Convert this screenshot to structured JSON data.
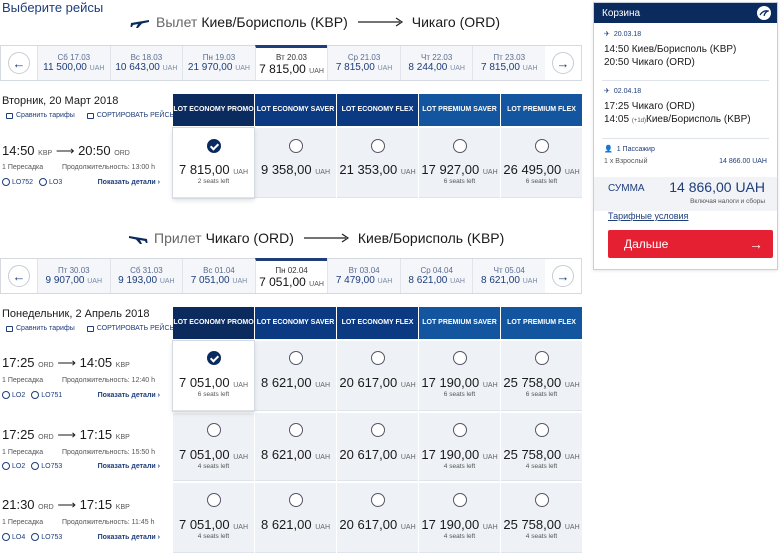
{
  "page_title": "Выберите рейсы",
  "outbound": {
    "kind": "Вылет",
    "from": "Киев/Борисполь (KBP)",
    "to": "Чикаго (ORD)",
    "dates": [
      {
        "day": "Сб 17.03",
        "price": "11 500,00",
        "cur": "UAH"
      },
      {
        "day": "Вс 18.03",
        "price": "10 643,00",
        "cur": "UAH"
      },
      {
        "day": "Пн 19.03",
        "price": "21 970,00",
        "cur": "UAH"
      },
      {
        "day": "Вт 20.03",
        "price": "7 815,00",
        "cur": "UAH"
      },
      {
        "day": "Ср 21.03",
        "price": "7 815,00",
        "cur": "UAH"
      },
      {
        "day": "Чт 22.03",
        "price": "8 244,00",
        "cur": "UAH"
      },
      {
        "day": "Пт 23.03",
        "price": "7 815,00",
        "cur": "UAH"
      }
    ],
    "date_label": "Вторник, 20 Март 2018",
    "fares": [
      "LOT ECONOMY PROMO",
      "LOT ECONOMY SAVER",
      "LOT ECONOMY FLEX",
      "LOT PREMIUM SAVER",
      "LOT PREMIUM FLEX"
    ],
    "flights": [
      {
        "dep": "14:50",
        "dep_code": "KBP",
        "arr": "20:50",
        "arr_code": "ORD",
        "stops": "1 Пересадка",
        "duration": "Продолжительность: 13:00 h",
        "flight_nums": [
          "LO752",
          "LO3"
        ],
        "prices": [
          {
            "value": "7 815,00",
            "seats": "2 seats left"
          },
          {
            "value": "9 358,00",
            "seats": ""
          },
          {
            "value": "21 353,00",
            "seats": ""
          },
          {
            "value": "17 927,00",
            "seats": "6 seats left"
          },
          {
            "value": "26 495,00",
            "seats": "6 seats left"
          }
        ]
      }
    ]
  },
  "inbound": {
    "kind": "Прилет",
    "from": "Чикаго (ORD)",
    "to": "Киев/Борисполь (KBP)",
    "dates": [
      {
        "day": "Пт 30.03",
        "price": "9 907,00",
        "cur": "UAH"
      },
      {
        "day": "Сб 31.03",
        "price": "9 193,00",
        "cur": "UAH"
      },
      {
        "day": "Вс 01.04",
        "price": "7 051,00",
        "cur": "UAH"
      },
      {
        "day": "Пн 02.04",
        "price": "7 051,00",
        "cur": "UAH"
      },
      {
        "day": "Вт 03.04",
        "price": "7 479,00",
        "cur": "UAH"
      },
      {
        "day": "Ср 04.04",
        "price": "8 621,00",
        "cur": "UAH"
      },
      {
        "day": "Чт 05.04",
        "price": "8 621,00",
        "cur": "UAH"
      }
    ],
    "date_label": "Понедельник, 2 Апрель 2018",
    "fares": [
      "LOT ECONOMY PROMO",
      "LOT ECONOMY SAVER",
      "LOT ECONOMY FLEX",
      "LOT PREMIUM SAVER",
      "LOT PREMIUM FLEX"
    ],
    "flights": [
      {
        "dep": "17:25",
        "dep_code": "ORD",
        "arr": "14:05",
        "arr_code": "KBP",
        "stops": "1 Пересадка",
        "duration": "Продолжительность: 12:40 h",
        "flight_nums": [
          "LO2",
          "LO751"
        ],
        "prices": [
          {
            "value": "7 051,00",
            "seats": "6 seats left"
          },
          {
            "value": "8 621,00",
            "seats": ""
          },
          {
            "value": "20 617,00",
            "seats": ""
          },
          {
            "value": "17 190,00",
            "seats": "6 seats left"
          },
          {
            "value": "25 758,00",
            "seats": "6 seats left"
          }
        ]
      },
      {
        "dep": "17:25",
        "dep_code": "ORD",
        "arr": "17:15",
        "arr_code": "KBP",
        "stops": "1 Пересадка",
        "duration": "Продолжительность: 15:50 h",
        "flight_nums": [
          "LO2",
          "LO753"
        ],
        "prices": [
          {
            "value": "7 051,00",
            "seats": "4 seats left"
          },
          {
            "value": "8 621,00",
            "seats": ""
          },
          {
            "value": "20 617,00",
            "seats": ""
          },
          {
            "value": "17 190,00",
            "seats": "4 seats left"
          },
          {
            "value": "25 758,00",
            "seats": "4 seats left"
          }
        ]
      },
      {
        "dep": "21:30",
        "dep_code": "ORD",
        "arr": "17:15",
        "arr_code": "KBP",
        "stops": "1 Пересадка",
        "duration": "Продолжительность: 11:45 h",
        "flight_nums": [
          "LO4",
          "LO753"
        ],
        "prices": [
          {
            "value": "7 051,00",
            "seats": "4 seats left"
          },
          {
            "value": "8 621,00",
            "seats": ""
          },
          {
            "value": "20 617,00",
            "seats": ""
          },
          {
            "value": "17 190,00",
            "seats": "4 seats left"
          },
          {
            "value": "25 758,00",
            "seats": "4 seats left"
          }
        ]
      }
    ]
  },
  "tools": {
    "compare": "Сравнить тарифы",
    "sort": "СОРТИРОВАТЬ РЕЙСЫ"
  },
  "details_label": "Показать детали",
  "currency": "UAH",
  "cart": {
    "title": "Корзина",
    "out_date": "20.03.18",
    "out_line1": "14:50 Киев/Борисполь (KBP)",
    "out_line2": "20:50 Чикаго (ORD)",
    "in_date": "02.04.18",
    "in_line1": "17:25 Чикаго (ORD)",
    "in_line2_time": "14:05",
    "in_line2_plus": "(+1d)",
    "in_line2_place": "Киев/Борисполь (KBP)",
    "pax_head": "1 Пассажир",
    "pax_row": "1 x Взрослый",
    "pax_price": "14 866.00 UAH",
    "sum_label": "СУММА",
    "sum_value": "14 866,00 UAH",
    "sum_note": "Включая налоги и сборы",
    "terms": "Тарифные условия",
    "next": "Дальше"
  },
  "colors": {
    "brand": "#0b2a5e",
    "accent": "#e42032"
  }
}
